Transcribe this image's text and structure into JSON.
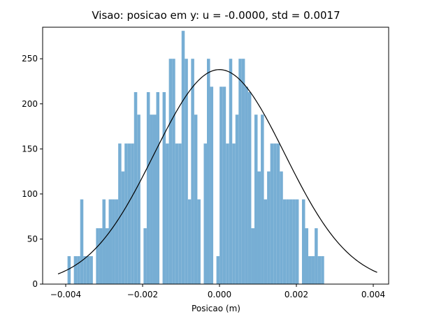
{
  "chart_data": {
    "type": "bar",
    "title": "Visao: posicao em y: u = -0.0000,  std = 0.0017",
    "xlabel": "Posicao (m)",
    "ylabel": "",
    "xlim": [
      -0.0046,
      0.0044
    ],
    "ylim": [
      0,
      285
    ],
    "xticks": [
      -0.004,
      -0.002,
      0.0,
      0.002,
      0.004
    ],
    "xtick_labels": [
      "−0.004",
      "−0.002",
      "0.000",
      "0.002",
      "0.004"
    ],
    "yticks": [
      0,
      50,
      100,
      150,
      200,
      250
    ],
    "ytick_labels": [
      "0",
      "50",
      "100",
      "150",
      "200",
      "250"
    ],
    "grid": false,
    "bar_color": "#77aed4",
    "curve_color": "#000000",
    "histogram": {
      "bin_start": -0.0042,
      "bin_width": 8.24e-05,
      "counts": [
        0,
        0,
        0,
        31,
        0,
        31,
        31,
        94,
        31,
        31,
        31,
        0,
        62,
        62,
        94,
        62,
        94,
        94,
        94,
        156,
        125,
        156,
        156,
        156,
        213,
        188,
        0,
        62,
        213,
        188,
        188,
        213,
        0,
        213,
        156,
        250,
        250,
        156,
        156,
        281,
        250,
        94,
        250,
        188,
        94,
        0,
        156,
        250,
        219,
        0,
        31,
        219,
        219,
        156,
        250,
        156,
        188,
        250,
        250,
        219,
        213,
        62,
        188,
        125,
        188,
        94,
        125,
        156,
        156,
        156,
        125,
        94,
        94,
        94,
        94,
        94,
        0,
        94,
        62,
        31,
        31,
        62,
        31,
        31,
        0,
        0,
        0
      ]
    },
    "curve": {
      "mean": 0.0,
      "std": 0.0017,
      "peak": 238,
      "x_range": [
        -0.0042,
        0.0041
      ]
    }
  }
}
